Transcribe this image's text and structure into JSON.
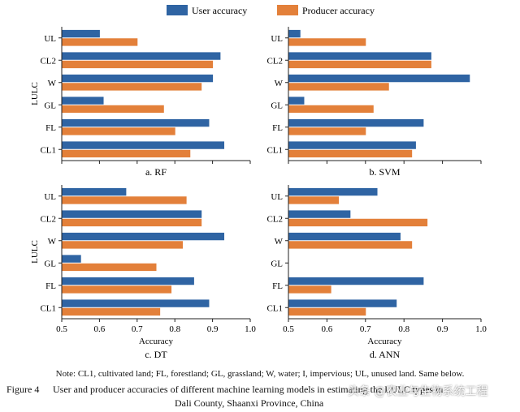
{
  "colors": {
    "user": "#2f64a3",
    "producer": "#e3803a",
    "axis": "#222222"
  },
  "legend": {
    "user": "User accuracy",
    "producer": "Producer accuracy"
  },
  "chart_data": {
    "type": "bar",
    "orientation": "horizontal",
    "categories": [
      "UL",
      "CL2",
      "W",
      "GL",
      "FL",
      "CL1"
    ],
    "ylabel": "LULC",
    "xlabel": "Accuracy",
    "xlim": [
      0.5,
      1.0
    ],
    "xticks": [
      "0.5",
      "0.6",
      "0.7",
      "0.8",
      "0.9",
      "1.0"
    ],
    "panels": [
      {
        "id": "rf",
        "caption": "a. RF",
        "show_ylabel": true,
        "show_xaxis": false,
        "series": [
          {
            "name": "User accuracy",
            "values": [
              0.6,
              0.92,
              0.9,
              0.61,
              0.89,
              0.93
            ]
          },
          {
            "name": "Producer accuracy",
            "values": [
              0.7,
              0.9,
              0.87,
              0.77,
              0.8,
              0.84
            ]
          }
        ]
      },
      {
        "id": "svm",
        "caption": "b. SVM",
        "show_ylabel": false,
        "show_xaxis": false,
        "series": [
          {
            "name": "User accuracy",
            "values": [
              0.53,
              0.87,
              0.97,
              0.54,
              0.85,
              0.83
            ]
          },
          {
            "name": "Producer accuracy",
            "values": [
              0.7,
              0.87,
              0.76,
              0.72,
              0.7,
              0.82
            ]
          }
        ]
      },
      {
        "id": "dt",
        "caption": "c. DT",
        "show_ylabel": true,
        "show_xaxis": true,
        "series": [
          {
            "name": "User accuracy",
            "values": [
              0.67,
              0.87,
              0.93,
              0.55,
              0.85,
              0.89
            ]
          },
          {
            "name": "Producer accuracy",
            "values": [
              0.83,
              0.87,
              0.82,
              0.75,
              0.79,
              0.76
            ]
          }
        ]
      },
      {
        "id": "ann",
        "caption": "d. ANN",
        "show_ylabel": false,
        "show_xaxis": true,
        "series": [
          {
            "name": "User accuracy",
            "values": [
              0.73,
              0.66,
              0.79,
              null,
              0.85,
              0.78
            ]
          },
          {
            "name": "Producer accuracy",
            "values": [
              0.63,
              0.86,
              0.82,
              null,
              0.61,
              0.7
            ]
          }
        ]
      }
    ]
  },
  "note": "Note: CL1, cultivated land; FL, forestland; GL, grassland; W, water; I, impervious; UL, unused land. Same below.",
  "figure_caption": {
    "label": "Figure 4",
    "text_line1": "User and producer accuracies of different machine learning models in estimating the LULC types in",
    "text_line2": "Dali County, Shaanxi Province, China"
  },
  "watermark": "头条 @农业与生物系统工程"
}
